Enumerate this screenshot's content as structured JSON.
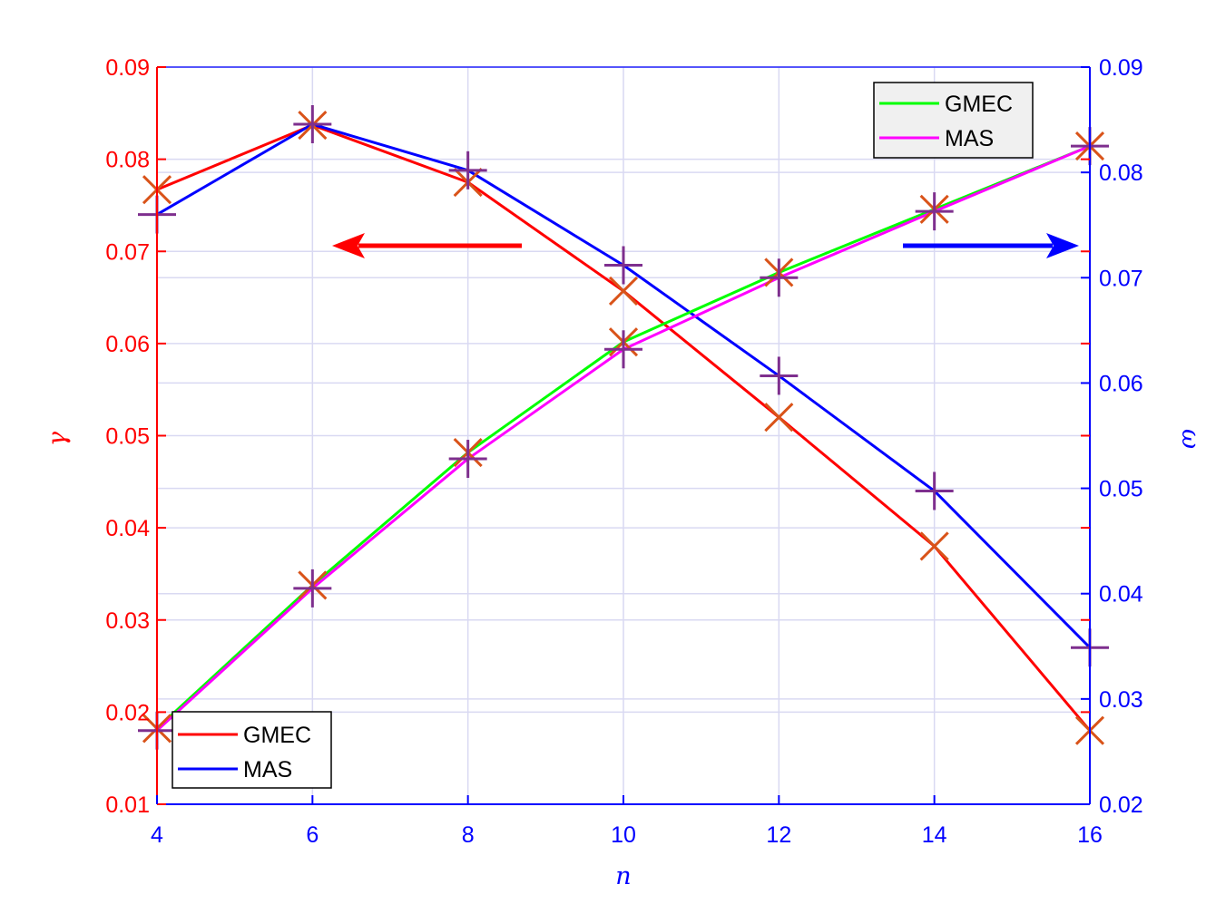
{
  "chart_data": {
    "type": "line",
    "xlabel": "n",
    "x": [
      4,
      6,
      8,
      10,
      12,
      14,
      16
    ],
    "xlim": [
      4,
      16
    ],
    "x_ticks": [
      "4",
      "6",
      "8",
      "10",
      "12",
      "14",
      "16"
    ],
    "left_axis": {
      "label": "γ",
      "color": "#ff0000",
      "ylim": [
        0.01,
        0.09
      ],
      "ticks": [
        "0.01",
        "0.02",
        "0.03",
        "0.04",
        "0.05",
        "0.06",
        "0.07",
        "0.08",
        "0.09"
      ],
      "series": [
        {
          "name": "GMEC",
          "color": "#ff0000",
          "marker": "x",
          "values": [
            0.0767,
            0.0837,
            0.0775,
            0.0657,
            0.052,
            0.038,
            0.018
          ]
        },
        {
          "name": "MAS",
          "color": "#0000ff",
          "marker": "+",
          "values": [
            0.074,
            0.0838,
            0.0788,
            0.0685,
            0.0565,
            0.044,
            0.027
          ]
        }
      ]
    },
    "right_axis": {
      "label": "ω",
      "color": "#0000ff",
      "ylim": [
        0.02,
        0.09
      ],
      "ticks": [
        "0.02",
        "0.03",
        "0.04",
        "0.05",
        "0.06",
        "0.07",
        "0.08",
        "0.09"
      ],
      "series": [
        {
          "name": "GMEC",
          "color": "#00ff00",
          "marker": "x",
          "values": [
            0.0272,
            0.0408,
            0.0534,
            0.0639,
            0.0705,
            0.0765,
            0.0825
          ]
        },
        {
          "name": "MAS",
          "color": "#ff00ff",
          "marker": "+",
          "values": [
            0.027,
            0.0405,
            0.0528,
            0.0632,
            0.07,
            0.0763,
            0.0825
          ]
        }
      ]
    },
    "legends": {
      "bottom_left": [
        {
          "name": "GMEC",
          "color": "#ff0000"
        },
        {
          "name": "MAS",
          "color": "#0000ff"
        }
      ],
      "top_right": [
        {
          "name": "GMEC",
          "color": "#00ff00"
        },
        {
          "name": "MAS",
          "color": "#ff00ff"
        }
      ]
    },
    "arrows": [
      {
        "direction": "left",
        "color": "#ff0000"
      },
      {
        "direction": "right",
        "color": "#0000ff"
      }
    ],
    "grid": true
  }
}
